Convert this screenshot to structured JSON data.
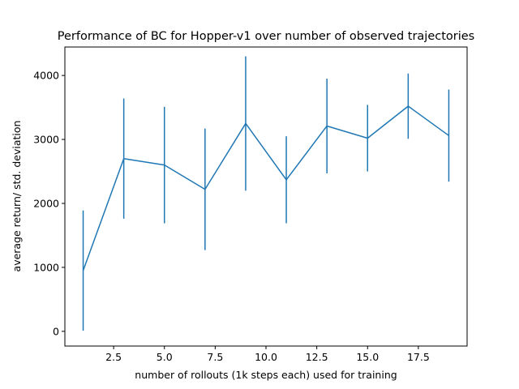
{
  "chart_data": {
    "type": "line",
    "title": "Performance of BC for Hopper-v1 over number of observed trajectories",
    "xlabel": "number of rollouts (1k steps each) used for training",
    "ylabel": "average return/ std. deviation",
    "xlim": [
      0.1,
      19.9
    ],
    "ylim": [
      -230,
      4445
    ],
    "xticks": [
      2.5,
      5.0,
      7.5,
      10.0,
      12.5,
      15.0,
      17.5
    ],
    "xtick_labels": [
      "2.5",
      "5.0",
      "7.5",
      "10.0",
      "12.5",
      "15.0",
      "17.5"
    ],
    "yticks": [
      0,
      1000,
      2000,
      3000,
      4000
    ],
    "ytick_labels": [
      "0",
      "1000",
      "2000",
      "3000",
      "4000"
    ],
    "grid": false,
    "series": [
      {
        "x": [
          1,
          3,
          5,
          7,
          9,
          11,
          13,
          15,
          17,
          19
        ],
        "y": [
          950,
          2700,
          2600,
          2220,
          3250,
          2370,
          3210,
          3020,
          3520,
          3060
        ],
        "error": [
          940,
          940,
          910,
          950,
          1050,
          680,
          740,
          520,
          510,
          720
        ],
        "color": "#1f77b4"
      }
    ]
  }
}
